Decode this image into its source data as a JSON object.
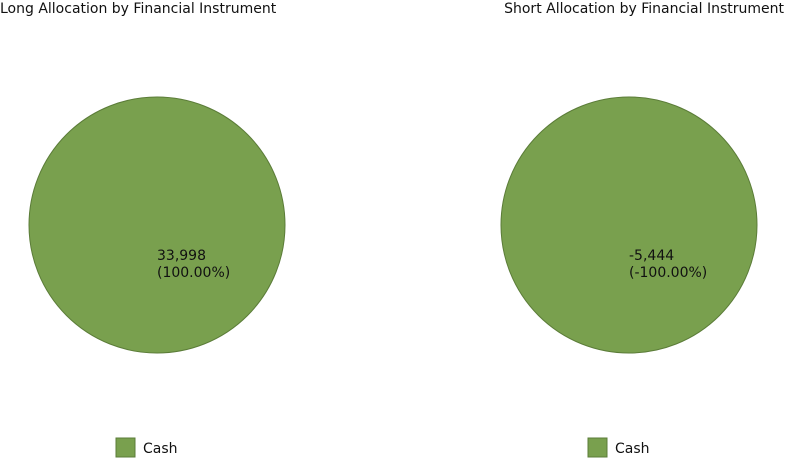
{
  "chart_data": [
    {
      "type": "pie",
      "title": "Long Allocation by Financial Instrument",
      "categories": [
        "Cash"
      ],
      "values": [
        33998
      ],
      "value_labels": [
        "33,998"
      ],
      "percentages": [
        100
      ],
      "percentage_labels": [
        "(100.00%)"
      ],
      "colors": [
        "#79a04e"
      ]
    },
    {
      "type": "pie",
      "title": "Short Allocation by Financial Instrument",
      "categories": [
        "Cash"
      ],
      "values": [
        -5444
      ],
      "value_labels": [
        "-5,444"
      ],
      "percentages": [
        -100
      ],
      "percentage_labels": [
        "(-100.00%)"
      ],
      "colors": [
        "#79a04e"
      ]
    }
  ]
}
